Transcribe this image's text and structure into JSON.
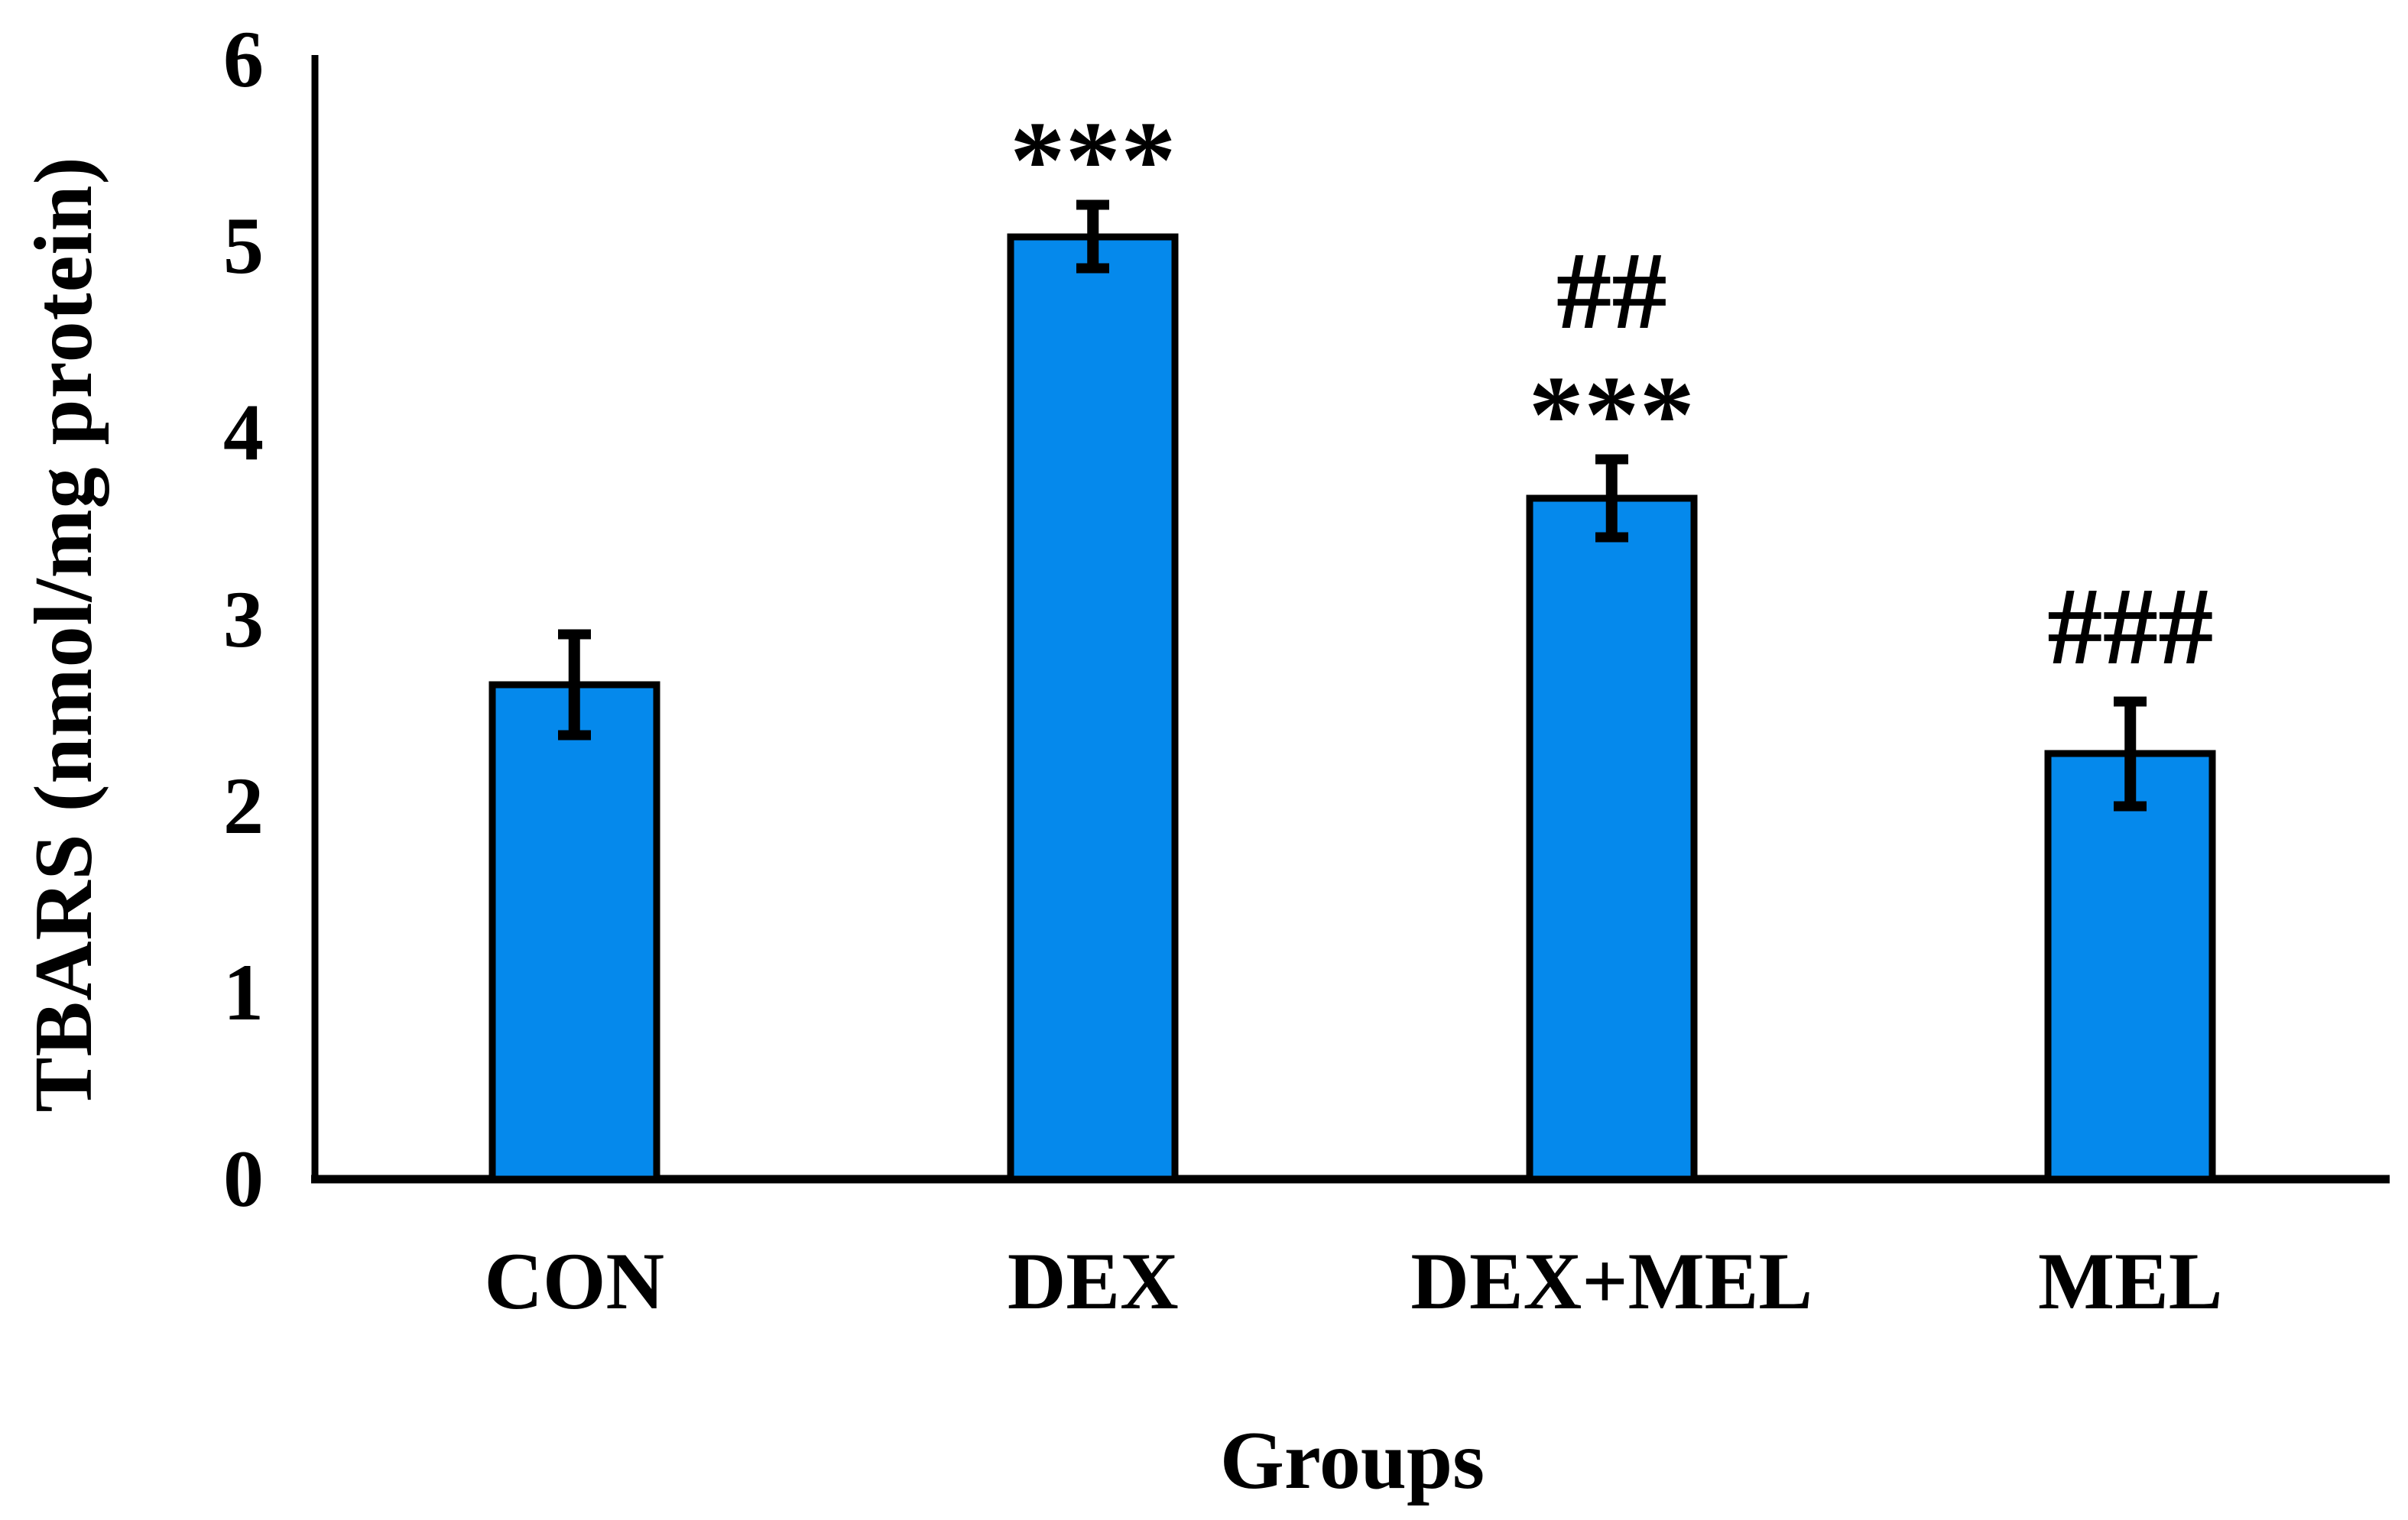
{
  "chart_data": {
    "type": "bar",
    "title": "",
    "xlabel": "Groups",
    "ylabel": "TBARS (nmol/mg protein)",
    "categories": [
      "CON",
      "DEX",
      "DEX+MEL",
      "MEL"
    ],
    "values": [
      2.65,
      5.05,
      3.65,
      2.28
    ],
    "errors": [
      0.27,
      0.17,
      0.21,
      0.28
    ],
    "annotations": [
      [],
      [
        "***"
      ],
      [
        "##",
        "***"
      ],
      [
        "###"
      ]
    ],
    "yticks": [
      0,
      1,
      2,
      3,
      4,
      5,
      6
    ],
    "ylim": [
      0,
      6
    ],
    "legend": "none",
    "grid": false,
    "bar_color": "#0589EC",
    "bar_border_color": "#000000",
    "error_bar_color": "#000000",
    "axis_color": "#000000"
  }
}
